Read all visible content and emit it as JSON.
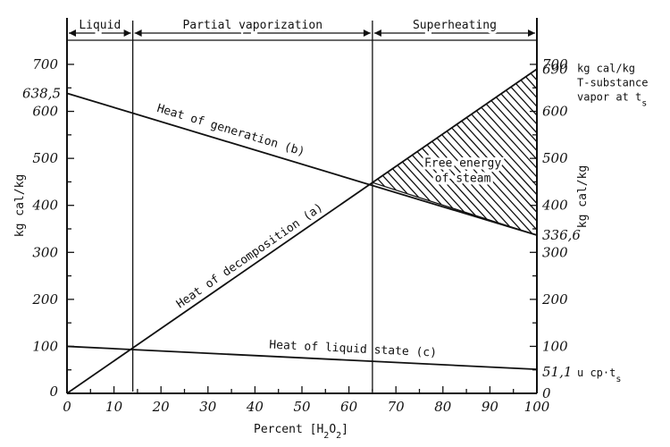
{
  "chart_data": {
    "type": "line",
    "xlabel": "Percent [H₂O₂]",
    "ylabel_left": "kg cal/kg",
    "ylabel_right": "kg cal/kg",
    "xlim": [
      0,
      100
    ],
    "ylim": [
      0,
      700
    ],
    "x_ticks": [
      "0",
      "10",
      "20",
      "30",
      "40",
      "50",
      "60",
      "70",
      "80",
      "90",
      "100"
    ],
    "y_ticks_left": [
      "100",
      "200",
      "300",
      "400",
      "500",
      "600",
      "700"
    ],
    "y_ticks_right": [
      "0",
      "100",
      "200",
      "300",
      "400",
      "500",
      "600",
      "700"
    ],
    "y_origin_label": "0",
    "regions": [
      {
        "label": "Liquid",
        "from": 0,
        "to": 14
      },
      {
        "label": "Partial vaporization",
        "from": 14,
        "to": 65
      },
      {
        "label": "Superheating",
        "from": 65,
        "to": 100
      }
    ],
    "series": [
      {
        "name": "Heat of generation (b)",
        "x": [
          0,
          100
        ],
        "y": [
          638.5,
          336.6
        ]
      },
      {
        "name": "Heat of decomposition (a)",
        "x": [
          0,
          100
        ],
        "y": [
          0,
          690
        ]
      },
      {
        "name": "Heat of liquid state (c)",
        "x": [
          0,
          100
        ],
        "y": [
          100,
          51.1
        ]
      }
    ],
    "shaded_region": {
      "label_line1": "Free energy",
      "label_line2": "of steam",
      "x_from": 65,
      "x_to": 100
    },
    "value_labels": {
      "left_start": "638,5",
      "right_top": "690",
      "right_mid": "336,6",
      "right_bottom": "51,1"
    },
    "right_annotations": {
      "top_line1": "kg cal/kg",
      "top_line2": "T-substance",
      "top_line3": "vapor at t",
      "top_line3_sub": "s",
      "bottom": "u cp·t",
      "bottom_sub": "s"
    }
  }
}
